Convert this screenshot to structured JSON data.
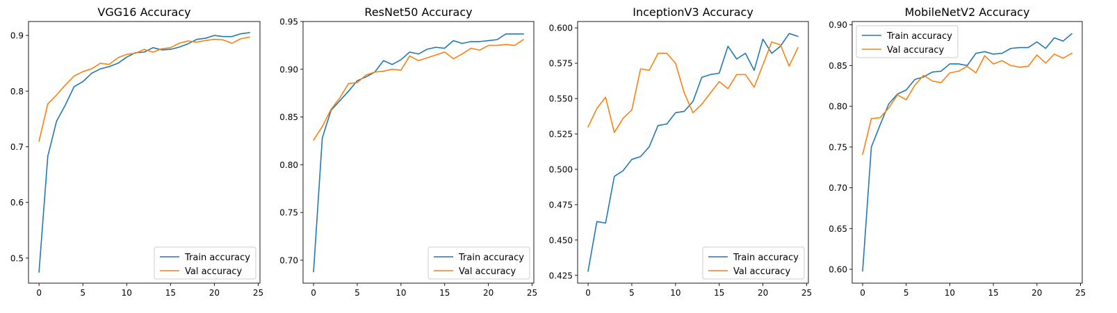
{
  "chart_data": [
    {
      "type": "line",
      "title": "VGG16 Accuracy",
      "xlim": [
        -1.2,
        25.2
      ],
      "ylim": [
        0.455,
        0.925
      ],
      "xticks": [
        0,
        5,
        10,
        15,
        20,
        25
      ],
      "yticks": [
        0.5,
        0.6,
        0.7,
        0.8,
        0.9
      ],
      "ytick_decimals": 1,
      "legend_position": "lower-right",
      "x": [
        0,
        1,
        2,
        3,
        4,
        5,
        6,
        7,
        8,
        9,
        10,
        11,
        12,
        13,
        14,
        15,
        16,
        17,
        18,
        19,
        20,
        21,
        22,
        23,
        24
      ],
      "series": [
        {
          "name": "Train accuracy",
          "color": "#1f77b4",
          "values": [
            0.475,
            0.683,
            0.746,
            0.775,
            0.808,
            0.817,
            0.832,
            0.84,
            0.844,
            0.85,
            0.861,
            0.869,
            0.87,
            0.878,
            0.874,
            0.875,
            0.879,
            0.885,
            0.893,
            0.895,
            0.9,
            0.898,
            0.898,
            0.903,
            0.905
          ]
        },
        {
          "name": "Val accuracy",
          "color": "#ff7f0e",
          "values": [
            0.71,
            0.777,
            0.793,
            0.811,
            0.827,
            0.835,
            0.84,
            0.85,
            0.848,
            0.86,
            0.866,
            0.868,
            0.875,
            0.87,
            0.876,
            0.878,
            0.886,
            0.89,
            0.888,
            0.891,
            0.893,
            0.892,
            0.886,
            0.894,
            0.897
          ]
        }
      ]
    },
    {
      "type": "line",
      "title": "ResNet50 Accuracy",
      "xlim": [
        -1.2,
        25.2
      ],
      "ylim": [
        0.676,
        0.95
      ],
      "xticks": [
        0,
        5,
        10,
        15,
        20,
        25
      ],
      "yticks": [
        0.7,
        0.75,
        0.8,
        0.85,
        0.9,
        0.95
      ],
      "ytick_decimals": 2,
      "legend_position": "lower-right",
      "x": [
        0,
        1,
        2,
        3,
        4,
        5,
        6,
        7,
        8,
        9,
        10,
        11,
        12,
        13,
        14,
        15,
        16,
        17,
        18,
        19,
        20,
        21,
        22,
        23,
        24
      ],
      "series": [
        {
          "name": "Train accuracy",
          "color": "#1f77b4",
          "values": [
            0.688,
            0.828,
            0.857,
            0.867,
            0.877,
            0.888,
            0.892,
            0.897,
            0.909,
            0.905,
            0.91,
            0.918,
            0.916,
            0.921,
            0.923,
            0.922,
            0.93,
            0.927,
            0.929,
            0.929,
            0.93,
            0.931,
            0.937,
            0.937,
            0.937
          ]
        },
        {
          "name": "Val accuracy",
          "color": "#ff7f0e",
          "values": [
            0.826,
            0.84,
            0.858,
            0.87,
            0.885,
            0.886,
            0.894,
            0.897,
            0.898,
            0.9,
            0.899,
            0.914,
            0.909,
            0.912,
            0.915,
            0.918,
            0.911,
            0.916,
            0.922,
            0.92,
            0.925,
            0.925,
            0.926,
            0.925,
            0.931
          ]
        }
      ]
    },
    {
      "type": "line",
      "title": "InceptionV3 Accuracy",
      "xlim": [
        -1.2,
        25.2
      ],
      "ylim": [
        0.4195,
        0.6045
      ],
      "xticks": [
        0,
        5,
        10,
        15,
        20,
        25
      ],
      "yticks": [
        0.425,
        0.45,
        0.475,
        0.5,
        0.525,
        0.55,
        0.575,
        0.6
      ],
      "ytick_decimals": 3,
      "legend_position": "lower-right",
      "x": [
        0,
        1,
        2,
        3,
        4,
        5,
        6,
        7,
        8,
        9,
        10,
        11,
        12,
        13,
        14,
        15,
        16,
        17,
        18,
        19,
        20,
        21,
        22,
        23,
        24
      ],
      "series": [
        {
          "name": "Train accuracy",
          "color": "#1f77b4",
          "values": [
            0.428,
            0.463,
            0.462,
            0.495,
            0.499,
            0.507,
            0.509,
            0.516,
            0.531,
            0.532,
            0.54,
            0.541,
            0.548,
            0.565,
            0.567,
            0.568,
            0.587,
            0.578,
            0.582,
            0.57,
            0.592,
            0.582,
            0.587,
            0.596,
            0.594
          ]
        },
        {
          "name": "Val accuracy",
          "color": "#ff7f0e",
          "values": [
            0.53,
            0.543,
            0.551,
            0.526,
            0.536,
            0.542,
            0.571,
            0.57,
            0.582,
            0.582,
            0.575,
            0.554,
            0.54,
            0.546,
            0.554,
            0.562,
            0.557,
            0.567,
            0.567,
            0.558,
            0.574,
            0.59,
            0.588,
            0.573,
            0.586
          ]
        }
      ]
    },
    {
      "type": "line",
      "title": "MobileNetV2 Accuracy",
      "xlim": [
        -1.2,
        25.2
      ],
      "ylim": [
        0.583,
        0.904
      ],
      "xticks": [
        0,
        5,
        10,
        15,
        20,
        25
      ],
      "yticks": [
        0.6,
        0.65,
        0.7,
        0.75,
        0.8,
        0.85,
        0.9
      ],
      "ytick_decimals": 2,
      "legend_position": "upper-left",
      "x": [
        0,
        1,
        2,
        3,
        4,
        5,
        6,
        7,
        8,
        9,
        10,
        11,
        12,
        13,
        14,
        15,
        16,
        17,
        18,
        19,
        20,
        21,
        22,
        23,
        24
      ],
      "series": [
        {
          "name": "Train accuracy",
          "color": "#1f77b4",
          "values": [
            0.598,
            0.75,
            0.777,
            0.803,
            0.815,
            0.82,
            0.833,
            0.836,
            0.842,
            0.843,
            0.852,
            0.852,
            0.85,
            0.865,
            0.867,
            0.864,
            0.865,
            0.871,
            0.872,
            0.872,
            0.879,
            0.871,
            0.884,
            0.88,
            0.889
          ]
        },
        {
          "name": "Val accuracy",
          "color": "#ff7f0e",
          "values": [
            0.741,
            0.785,
            0.786,
            0.798,
            0.814,
            0.808,
            0.826,
            0.838,
            0.831,
            0.829,
            0.841,
            0.843,
            0.849,
            0.841,
            0.862,
            0.852,
            0.856,
            0.85,
            0.848,
            0.849,
            0.863,
            0.853,
            0.864,
            0.859,
            0.865
          ]
        }
      ]
    }
  ]
}
